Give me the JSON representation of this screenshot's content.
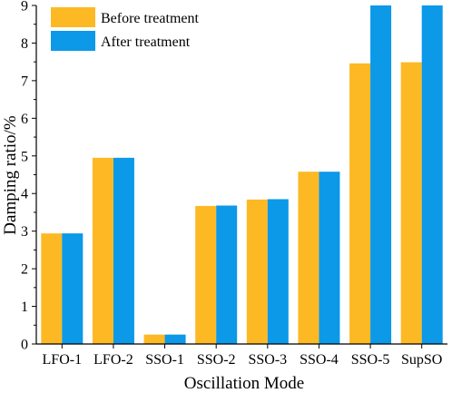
{
  "chart_data": {
    "type": "bar",
    "title": "",
    "xlabel": "Oscillation Mode",
    "ylabel": "Damping ratio/%",
    "categories": [
      "LFO-1",
      "LFO-2",
      "SSO-1",
      "SSO-2",
      "SSO-3",
      "SSO-4",
      "SSO-5",
      "SupSO"
    ],
    "series": [
      {
        "name": "Before treatment",
        "color": "#FDB924",
        "values": [
          2.94,
          4.95,
          0.25,
          3.67,
          3.84,
          4.58,
          7.46,
          7.49
        ]
      },
      {
        "name": "After treatment",
        "color": "#0B99E8",
        "values": [
          2.94,
          4.95,
          0.25,
          3.68,
          3.85,
          4.58,
          9.0,
          9.0
        ]
      }
    ],
    "ylim": [
      0,
      9
    ],
    "yticks": [
      "0",
      "1",
      "2",
      "3",
      "4",
      "5",
      "6",
      "7",
      "8",
      "9"
    ],
    "grid": false,
    "legend_position": "top-left"
  }
}
